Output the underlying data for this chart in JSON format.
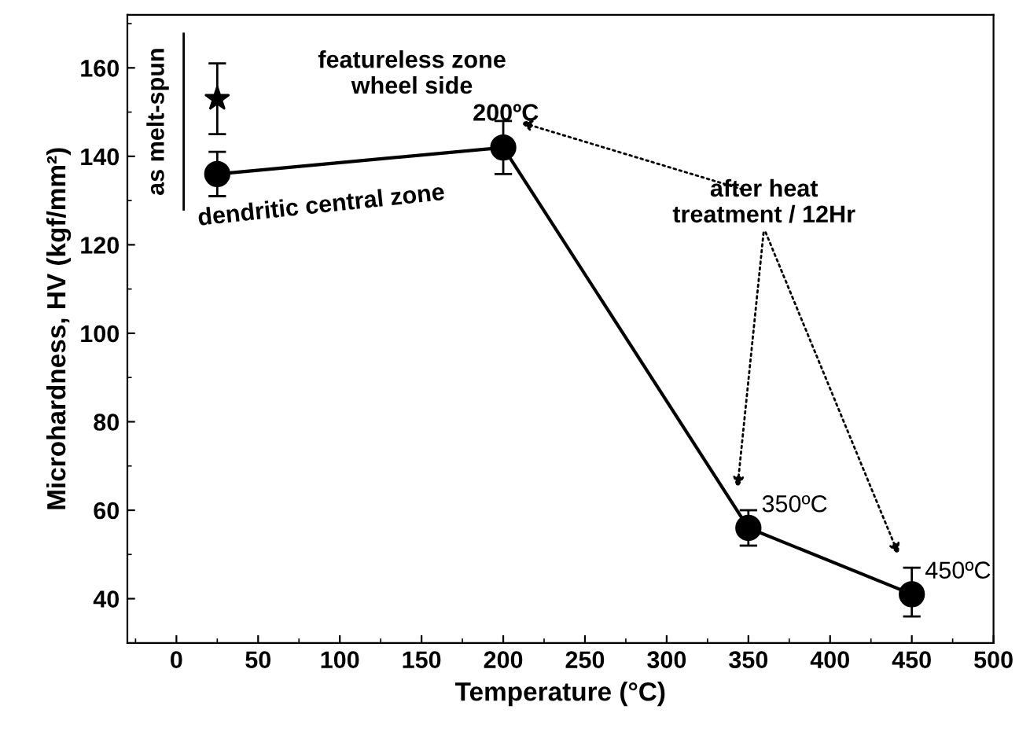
{
  "chart_data": {
    "type": "line",
    "xlabel": "Temperature (°C)",
    "ylabel": "Microhardness, HV (kgf/mm²)",
    "xlim": [
      -30,
      500
    ],
    "ylim": [
      30,
      172
    ],
    "xticks": [
      0,
      50,
      100,
      150,
      200,
      250,
      300,
      350,
      400,
      450,
      500
    ],
    "yticks": [
      40,
      60,
      80,
      100,
      120,
      140,
      160
    ],
    "grid": false,
    "legend": false,
    "series": [
      {
        "color": "#000000",
        "marker": "circle",
        "line_style": "solid",
        "x": [
          25,
          200,
          350,
          450
        ],
        "values": [
          136,
          142,
          56,
          41
        ],
        "errors": [
          5,
          6,
          4,
          [
            36,
            47
          ]
        ]
      },
      {
        "type": "scatter",
        "color": "#000000",
        "marker": "star",
        "x": [
          25
        ],
        "values": [
          153
        ],
        "errors": [
          8
        ]
      }
    ],
    "annotations": [
      "as melt-spun",
      "featureless zone\nwheel side",
      "dendritic central zone",
      "after heat\ntreatment / 12Hr",
      {
        "text": "200ºC",
        "x": 200,
        "y": 142
      },
      {
        "text": "350ºC",
        "x": 350,
        "y": 56
      },
      {
        "text": "450ºC",
        "x": 450,
        "y": 41
      }
    ]
  }
}
